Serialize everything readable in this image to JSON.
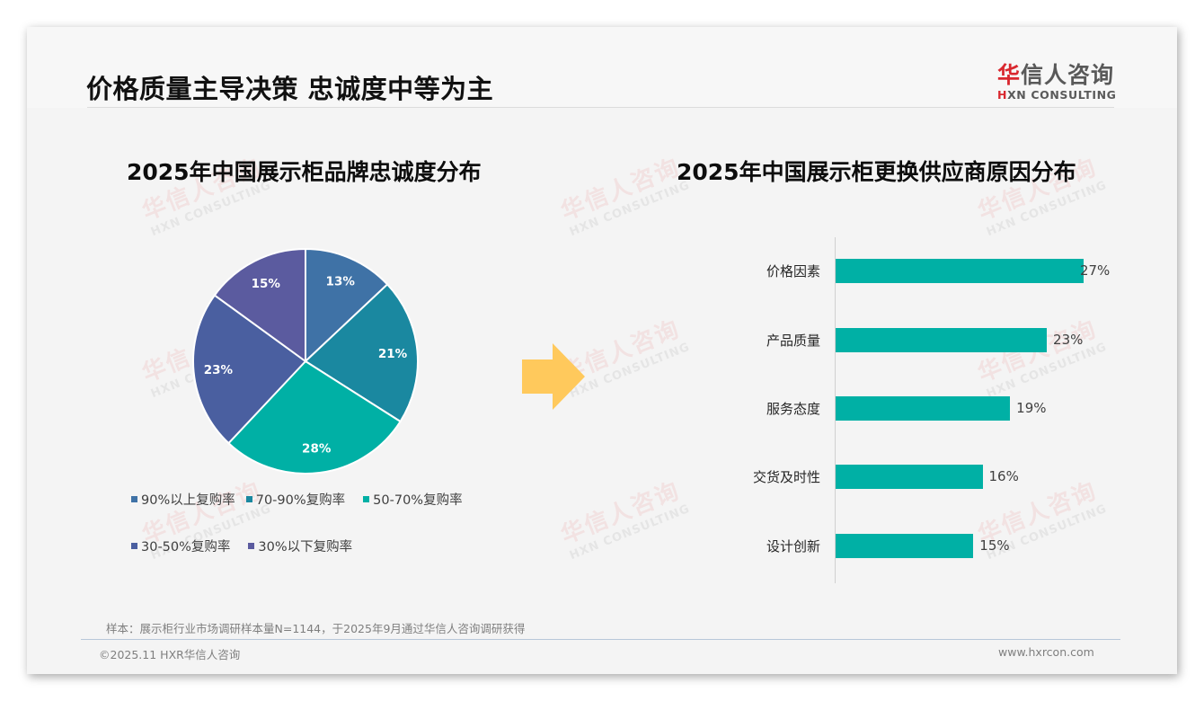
{
  "header": {
    "title": "价格质量主导决策 忠诚度中等为主",
    "logo": {
      "cn_first": "华",
      "cn_rest": "信人咨询",
      "en_mark": "H",
      "en_rest": "XN CONSULTING"
    }
  },
  "watermark": {
    "cn": "华信人咨询",
    "en": "HXN CONSULTING"
  },
  "colors": {
    "pie": [
      "#3f72a6",
      "#1a88a0",
      "#00b0a5",
      "#4a5fa0",
      "#5b5b9f"
    ],
    "bar": "#00b0a5",
    "arrow": "#ffc95c",
    "logo_red": "#d9282f"
  },
  "chart_data": [
    {
      "type": "pie",
      "title": "2025年中国展示柜品牌忠诚度分布",
      "categories": [
        "90%以上复购率",
        "70-90%复购率",
        "50-70%复购率",
        "30-50%复购率",
        "30%以下复购率"
      ],
      "values": [
        13,
        21,
        28,
        23,
        15
      ],
      "labels": [
        "13%",
        "21%",
        "28%",
        "23%",
        "15%"
      ],
      "unit": "%",
      "legend_position": "bottom",
      "start_angle": "12 o'clock, clockwise"
    },
    {
      "type": "bar",
      "orientation": "horizontal",
      "title": "2025年中国展示柜更换供应商原因分布",
      "categories": [
        "价格因素",
        "产品质量",
        "服务态度",
        "交货及时性",
        "设计创新"
      ],
      "values": [
        27,
        23,
        19,
        16,
        15
      ],
      "labels": [
        "27%",
        "23%",
        "19%",
        "16%",
        "15%"
      ],
      "unit": "%",
      "xlabel": "",
      "ylabel": "",
      "grid": false
    }
  ],
  "footer": {
    "note": "样本：展示柜行业市场调研样本量N=1144，于2025年9月通过华信人咨询调研获得",
    "copyright": "©2025.11 HXR华信人咨询",
    "website": "www.hxrcon.com"
  }
}
